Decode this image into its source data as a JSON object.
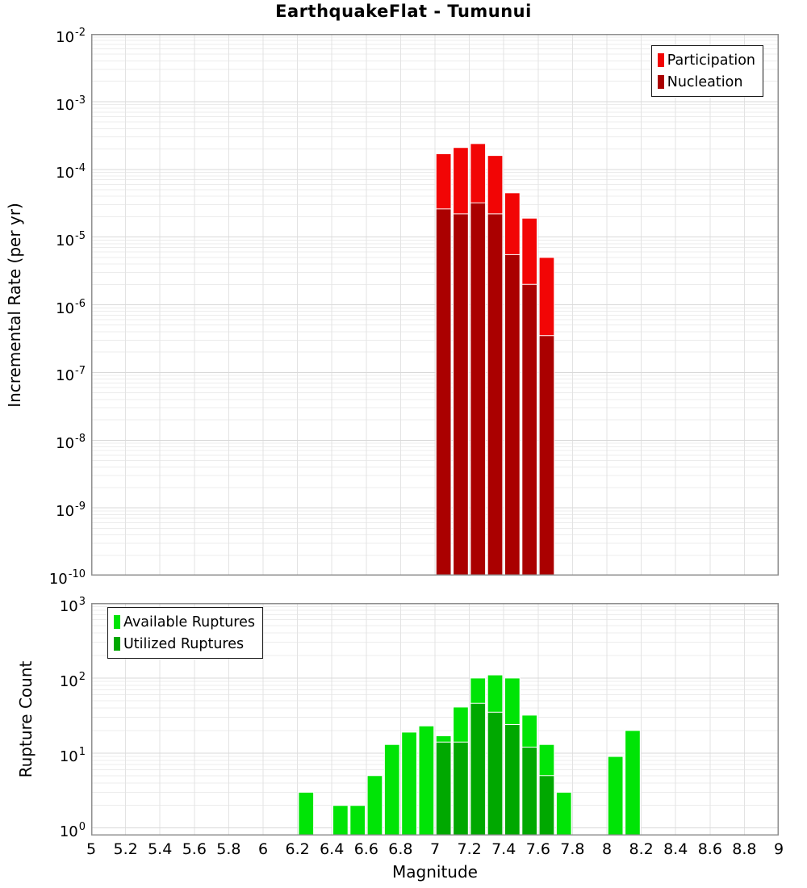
{
  "title": "EarthquakeFlat - Tumunui",
  "colors": {
    "participation": "#f20505",
    "nucleation": "#aa0000",
    "available": "#00e406",
    "utilized": "#00a800",
    "grid_minor": "#ececec",
    "grid_major": "#d9d9d9",
    "grid_vertical": "#e3e3e3",
    "frame": "#8f8f8f"
  },
  "chart_data": [
    {
      "id": "incremental_rate",
      "type": "bar",
      "title": "EarthquakeFlat - Tumunui",
      "xlabel": "",
      "ylabel": "Incremental Rate (per yr)",
      "x_range": [
        5,
        9
      ],
      "x_tick_step": 0.2,
      "bin_width": 0.1,
      "y_scale": "log",
      "y_range": [
        1e-10,
        0.01
      ],
      "y_tick_exponents": [
        -2,
        -3,
        -4,
        -5,
        -6,
        -7,
        -8,
        -9,
        -10
      ],
      "grid": true,
      "legend_position": "top-right",
      "series": [
        {
          "name": "Participation",
          "color": "#f20505",
          "points": [
            {
              "x": 7.0,
              "y": 0.00017
            },
            {
              "x": 7.1,
              "y": 0.00021
            },
            {
              "x": 7.2,
              "y": 0.00024
            },
            {
              "x": 7.3,
              "y": 0.00016
            },
            {
              "x": 7.4,
              "y": 4.5e-05
            },
            {
              "x": 7.5,
              "y": 1.9e-05
            },
            {
              "x": 7.6,
              "y": 5e-06
            }
          ]
        },
        {
          "name": "Nucleation",
          "color": "#aa0000",
          "points": [
            {
              "x": 7.0,
              "y": 2.6e-05
            },
            {
              "x": 7.1,
              "y": 2.2e-05
            },
            {
              "x": 7.2,
              "y": 3.2e-05
            },
            {
              "x": 7.3,
              "y": 2.2e-05
            },
            {
              "x": 7.4,
              "y": 5.5e-06
            },
            {
              "x": 7.5,
              "y": 2e-06
            },
            {
              "x": 7.6,
              "y": 3.5e-07
            }
          ]
        }
      ]
    },
    {
      "id": "rupture_count",
      "type": "bar",
      "title": "",
      "xlabel": "Magnitude",
      "ylabel": "Rupture Count",
      "x_range": [
        5,
        9
      ],
      "x_tick_step": 0.2,
      "x_tick_labels": [
        "5",
        "5.2",
        "5.4",
        "5.6",
        "5.8",
        "6",
        "6.2",
        "6.4",
        "6.6",
        "6.8",
        "7",
        "7.2",
        "7.4",
        "7.6",
        "7.8",
        "8",
        "8.2",
        "8.4",
        "8.6",
        "8.8",
        "9"
      ],
      "bin_width": 0.1,
      "y_scale": "log",
      "y_range": [
        1,
        1000
      ],
      "y_tick_exponents": [
        3,
        2,
        1,
        0
      ],
      "grid": true,
      "legend_position": "top-left",
      "series": [
        {
          "name": "Available Ruptures",
          "color": "#00e406",
          "points": [
            {
              "x": 6.2,
              "y": 3
            },
            {
              "x": 6.4,
              "y": 2
            },
            {
              "x": 6.5,
              "y": 2
            },
            {
              "x": 6.6,
              "y": 5
            },
            {
              "x": 6.7,
              "y": 13
            },
            {
              "x": 6.8,
              "y": 19
            },
            {
              "x": 6.9,
              "y": 23
            },
            {
              "x": 7.0,
              "y": 17
            },
            {
              "x": 7.1,
              "y": 41
            },
            {
              "x": 7.2,
              "y": 100
            },
            {
              "x": 7.3,
              "y": 110
            },
            {
              "x": 7.4,
              "y": 100
            },
            {
              "x": 7.5,
              "y": 32
            },
            {
              "x": 7.6,
              "y": 13
            },
            {
              "x": 7.7,
              "y": 3
            },
            {
              "x": 8.0,
              "y": 9
            },
            {
              "x": 8.1,
              "y": 20
            }
          ]
        },
        {
          "name": "Utilized Ruptures",
          "color": "#00a800",
          "points": [
            {
              "x": 7.0,
              "y": 14
            },
            {
              "x": 7.1,
              "y": 14
            },
            {
              "x": 7.2,
              "y": 46
            },
            {
              "x": 7.3,
              "y": 35
            },
            {
              "x": 7.4,
              "y": 24
            },
            {
              "x": 7.5,
              "y": 12
            },
            {
              "x": 7.6,
              "y": 5
            }
          ]
        }
      ]
    }
  ]
}
